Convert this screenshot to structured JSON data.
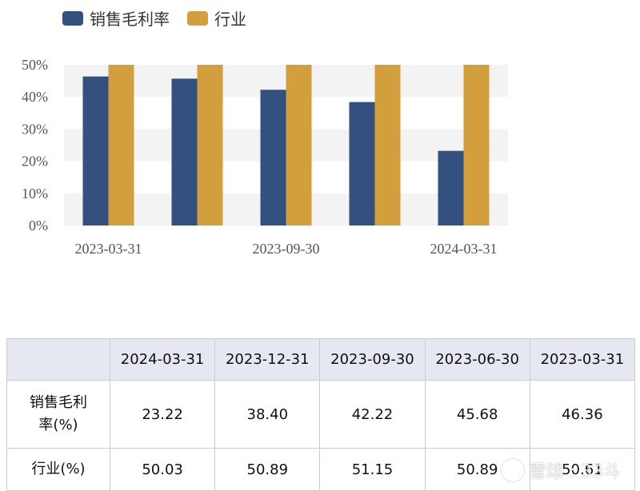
{
  "legend": {
    "items": [
      {
        "label": "销售毛利率",
        "color": "#34507f"
      },
      {
        "label": "行业",
        "color": "#d39f3c"
      }
    ]
  },
  "chart_data": {
    "type": "bar",
    "categories": [
      "2023-03-31",
      "2023-06-30",
      "2023-09-30",
      "2023-12-31",
      "2024-03-31"
    ],
    "x_tick_labels": [
      "2023-03-31",
      "2023-09-30",
      "2024-03-31"
    ],
    "series": [
      {
        "name": "销售毛利率",
        "color": "#34507f",
        "values": [
          46.36,
          45.68,
          42.22,
          38.4,
          23.22
        ]
      },
      {
        "name": "行业",
        "color": "#d39f3c",
        "values": [
          50.61,
          50.89,
          51.15,
          50.89,
          50.03
        ]
      }
    ],
    "y_ticks": [
      "50%",
      "40%",
      "30%",
      "20%",
      "10%",
      "0%"
    ],
    "ylim": [
      0,
      50
    ],
    "grid": "alternating horizontal bands",
    "legend_position": "top-left"
  },
  "table": {
    "headers": [
      "",
      "2024-03-31",
      "2023-12-31",
      "2023-09-30",
      "2023-06-30",
      "2023-03-31"
    ],
    "rows": [
      {
        "label_line1": "销售毛利",
        "label_line2": "率(%)",
        "values": [
          "23.22",
          "38.40",
          "42.22",
          "45.68",
          "46.36"
        ]
      },
      {
        "label": "行业(%)",
        "values": [
          "50.03",
          "50.89",
          "51.15",
          "50.89",
          "50.61"
        ]
      }
    ]
  },
  "watermark": {
    "text": "雪球 : 33斗"
  }
}
